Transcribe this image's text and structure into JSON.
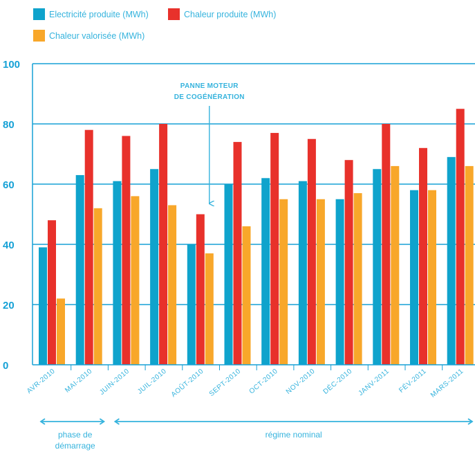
{
  "legend": {
    "electricite": "Electricité produite (MWh)",
    "chaleur": "Chaleur produite (MWh)",
    "valorisee": "Chaleur  valorisée (MWh)"
  },
  "colors": {
    "electricite": "#0fa3cc",
    "chaleur": "#e8312b",
    "valorisee": "#f8a72a",
    "accent": "#35b3dd",
    "axis": "#16a1d6"
  },
  "annotation": {
    "line1": "PANNE MOTEUR",
    "line2": "DE COGÉNÉRATION",
    "target_category": "AOÛT-2010"
  },
  "phases": [
    {
      "lines": [
        "phase de",
        "démarrage"
      ],
      "from": "AVR-2010",
      "to": "MAI-2010"
    },
    {
      "lines": [
        "régime nominal"
      ],
      "from": "JUIN-2010",
      "to": "MARS-2011"
    }
  ],
  "chart_data": {
    "type": "bar",
    "categories": [
      "AVR-2010",
      "MAI-2010",
      "JUIN-2010",
      "JUIL-2010",
      "AOÛT-2010",
      "SEPT-2010",
      "OCT-2010",
      "NOV-2010",
      "DÉC-2010",
      "JANV-2011",
      "FÉV-2011",
      "MARS-2011"
    ],
    "series": [
      {
        "name": "Electricité produite (MWh)",
        "color": "#0fa3cc",
        "values": [
          39,
          63,
          61,
          65,
          40,
          60,
          62,
          61,
          55,
          65,
          58,
          69
        ]
      },
      {
        "name": "Chaleur produite (MWh)",
        "color": "#e8312b",
        "values": [
          48,
          78,
          76,
          80,
          50,
          74,
          77,
          75,
          68,
          80,
          72,
          85
        ]
      },
      {
        "name": "Chaleur  valorisée (MWh)",
        "color": "#f8a72a",
        "values": [
          22,
          52,
          56,
          53,
          37,
          46,
          55,
          55,
          57,
          66,
          58,
          66
        ]
      }
    ],
    "ylim": [
      0,
      100
    ],
    "yticks": [
      0,
      20,
      40,
      60,
      80,
      100
    ],
    "grid": true,
    "legend_position": "top-left",
    "title": "",
    "xlabel": "",
    "ylabel": ""
  }
}
